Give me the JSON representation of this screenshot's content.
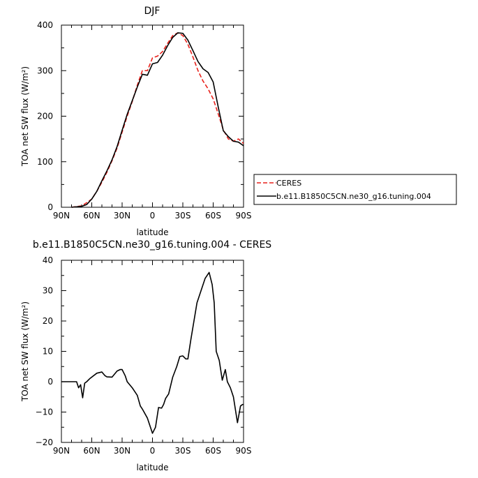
{
  "chart_data": [
    {
      "type": "line",
      "title": "DJF",
      "xlabel": "latitude",
      "ylabel": "TOA net SW flux (W/m²)",
      "xlim": [
        -90,
        90
      ],
      "ylim": [
        0,
        400
      ],
      "xticks": [
        -90,
        -60,
        -30,
        0,
        30,
        60,
        90
      ],
      "xtick_labels": [
        "90N",
        "60N",
        "30N",
        "0",
        "30S",
        "60S",
        "90S"
      ],
      "yticks": [
        0,
        100,
        200,
        300,
        400
      ],
      "ytick_labels": [
        "0",
        "100",
        "200",
        "300",
        "400"
      ],
      "legend": {
        "placement": "right"
      },
      "series": [
        {
          "name": "CERES",
          "color": "#e8211b",
          "dash": "dashed",
          "x": [
            -80,
            -70,
            -65,
            -60,
            -55,
            -50,
            -45,
            -40,
            -35,
            -30,
            -25,
            -20,
            -15,
            -10,
            -5,
            0,
            5,
            10,
            15,
            20,
            25,
            30,
            35,
            40,
            45,
            50,
            55,
            60,
            65,
            70,
            75,
            80,
            85,
            90
          ],
          "y": [
            0,
            3,
            10,
            18,
            35,
            55,
            77,
            102,
            130,
            165,
            200,
            232,
            268,
            300,
            300,
            328,
            332,
            342,
            360,
            377,
            383,
            377,
            358,
            330,
            300,
            277,
            260,
            238,
            205,
            170,
            150,
            145,
            150,
            140
          ]
        },
        {
          "name": "b.e11.B1850C5CN.ne30_g16.tuning.004",
          "color": "#000000",
          "dash": "solid",
          "x": [
            -80,
            -70,
            -65,
            -60,
            -55,
            -50,
            -45,
            -40,
            -35,
            -30,
            -25,
            -20,
            -15,
            -10,
            -5,
            0,
            5,
            10,
            15,
            20,
            25,
            30,
            35,
            40,
            45,
            50,
            55,
            60,
            65,
            70,
            75,
            80,
            85,
            90
          ],
          "y": [
            0,
            2,
            6,
            18,
            35,
            58,
            80,
            104,
            133,
            169,
            204,
            234,
            264,
            292,
            290,
            315,
            318,
            334,
            355,
            373,
            383,
            382,
            367,
            344,
            320,
            304,
            296,
            275,
            220,
            168,
            155,
            145,
            143,
            135
          ]
        }
      ]
    },
    {
      "type": "line",
      "title": "b.e11.B1850C5CN.ne30_g16.tuning.004 - CERES",
      "xlabel": "latitude",
      "ylabel": "TOA net SW flux (W/m²)",
      "xlim": [
        -90,
        90
      ],
      "ylim": [
        -20,
        40
      ],
      "xticks": [
        -90,
        -60,
        -30,
        0,
        30,
        60,
        90
      ],
      "xtick_labels": [
        "90N",
        "60N",
        "30N",
        "0",
        "30S",
        "60S",
        "90S"
      ],
      "yticks": [
        -20,
        -10,
        0,
        10,
        20,
        30,
        40
      ],
      "ytick_labels": [
        "−20",
        "−10",
        "0",
        "10",
        "20",
        "30",
        "40"
      ],
      "series": [
        {
          "color": "#000000",
          "dash": "solid",
          "x": [
            -90,
            -75,
            -73,
            -71,
            -69,
            -67,
            -65,
            -62,
            -55,
            -50,
            -47,
            -45,
            -40,
            -35,
            -32,
            -30,
            -27,
            -25,
            -20,
            -15,
            -12,
            -10,
            -5,
            0,
            3,
            6,
            9,
            11,
            13,
            16,
            20,
            24,
            27,
            30,
            33,
            35,
            38,
            41,
            44,
            48,
            52,
            56,
            59,
            61,
            63,
            66,
            69,
            72,
            74,
            77,
            80,
            84,
            87,
            89,
            90
          ],
          "y": [
            0,
            0,
            -2,
            -1,
            -5.3,
            -0.5,
            0,
            1,
            2.8,
            3.2,
            2,
            1.6,
            1.5,
            3.5,
            4,
            4,
            2,
            0,
            -2,
            -4.5,
            -8,
            -9,
            -12,
            -17,
            -15,
            -8.5,
            -8.7,
            -7.5,
            -5.5,
            -4,
            1.5,
            5,
            8.3,
            8.5,
            7.5,
            7.5,
            14,
            20,
            26,
            30,
            34,
            36,
            32,
            26,
            10,
            7,
            0.5,
            4,
            0,
            -2,
            -5,
            -13.5,
            -8,
            -7.5,
            -7.5
          ]
        }
      ]
    }
  ]
}
